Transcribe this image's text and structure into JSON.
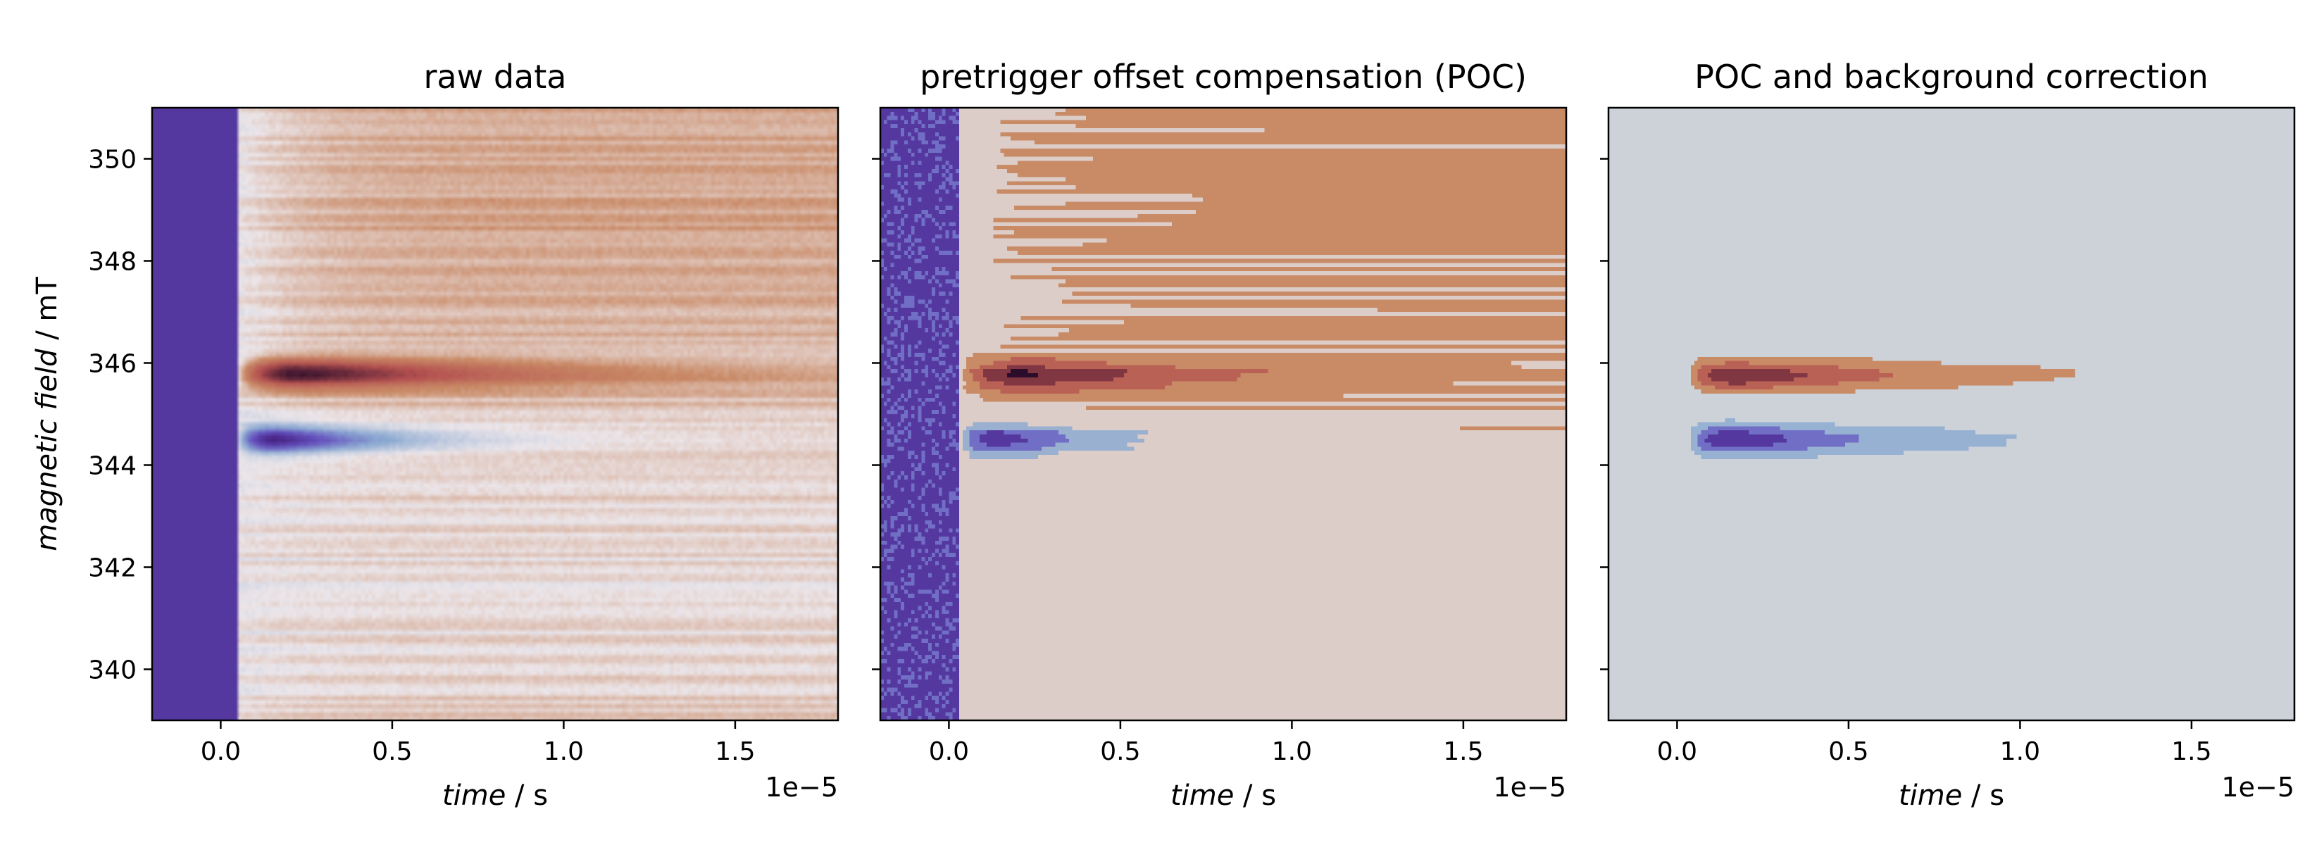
{
  "chart_data": [
    {
      "type": "heatmap",
      "title": "raw data",
      "xlabel": {
        "var": "time",
        "unit": " / s"
      },
      "ylabel": {
        "var": "magnetic field",
        "unit": " / mT"
      },
      "x_offset_label": "1e−5",
      "xlim": [
        -2e-06,
        1.8e-05
      ],
      "ylim": [
        339,
        351
      ],
      "xticks": [
        0.0,
        0.5,
        1.0,
        1.5
      ],
      "xtick_labels": [
        "0.0",
        "0.5",
        "1.0",
        "1.5"
      ],
      "yticks": [
        340,
        342,
        344,
        346,
        348,
        350
      ],
      "ytick_labels": [
        "340",
        "342",
        "344",
        "346",
        "348",
        "350"
      ],
      "style": "smooth",
      "pretrigger_level": -0.75,
      "trigger_time": 5e-07,
      "features": [
        {
          "sign": 1,
          "field": 345.8,
          "peak_time": 1.5e-06,
          "decay": 5.5e-06,
          "width": 0.28,
          "amplitude": 1.0
        },
        {
          "sign": -1,
          "field": 344.5,
          "peak_time": 1e-06,
          "decay": 3e-06,
          "width": 0.25,
          "amplitude": 1.0
        }
      ],
      "background_level": 0.18,
      "colors": {
        "negative": "#5a68c4",
        "neutral": "#ece6ea",
        "positive": "#c98a66",
        "extreme_positive": "#2b0c2a",
        "extreme_negative": "#3b0f6b"
      }
    },
    {
      "type": "heatmap",
      "title": "pretrigger offset compensation (POC)",
      "xlabel": {
        "var": "time",
        "unit": " / s"
      },
      "x_offset_label": "1e−5",
      "xlim": [
        -2e-06,
        1.8e-05
      ],
      "ylim": [
        339,
        351
      ],
      "xticks": [
        0.0,
        0.5,
        1.0,
        1.5
      ],
      "xtick_labels": [
        "0.0",
        "0.5",
        "1.0",
        "1.5"
      ],
      "yticks": [
        340,
        342,
        344,
        346,
        348,
        350
      ],
      "style": "contour",
      "pretrigger_level": -0.7,
      "trigger_time": 3e-07,
      "features": [
        {
          "sign": 1,
          "field": 345.75,
          "peak_time": 1.5e-06,
          "decay": 5.5e-06,
          "width": 0.3,
          "amplitude": 1.0
        },
        {
          "sign": -1,
          "field": 344.5,
          "peak_time": 1e-06,
          "decay": 3e-06,
          "width": 0.27,
          "amplitude": 1.0
        }
      ],
      "background_level": 0.18,
      "colors": {
        "negative": "#6f86d0",
        "neutral": "#dccdc8",
        "positive": "#c98a66",
        "extreme_positive": "#2b0c2a",
        "extreme_negative": "#3b0f6b"
      }
    },
    {
      "type": "heatmap",
      "title": "POC and background correction",
      "xlabel": {
        "var": "time",
        "unit": " / s"
      },
      "x_offset_label": "1e−5",
      "xlim": [
        -2e-06,
        1.8e-05
      ],
      "ylim": [
        339,
        351
      ],
      "xticks": [
        0.0,
        0.5,
        1.0,
        1.5
      ],
      "xtick_labels": [
        "0.0",
        "0.5",
        "1.0",
        "1.5"
      ],
      "yticks": [
        340,
        342,
        344,
        346,
        348,
        350
      ],
      "style": "contour",
      "pretrigger_level": 0.0,
      "trigger_time": 3e-07,
      "features": [
        {
          "sign": 1,
          "field": 345.75,
          "peak_time": 1.2e-06,
          "decay": 5e-06,
          "width": 0.28,
          "amplitude": 1.0
        },
        {
          "sign": -1,
          "field": 344.5,
          "peak_time": 1.1e-06,
          "decay": 4e-06,
          "width": 0.28,
          "amplitude": 1.0
        }
      ],
      "background_level": 0.0,
      "colors": {
        "negative": "#6f86d0",
        "neutral": "#ccd2d8",
        "positive": "#c98a66",
        "extreme_positive": "#2b0c2a",
        "extreme_negative": "#3b0f6b"
      }
    }
  ]
}
